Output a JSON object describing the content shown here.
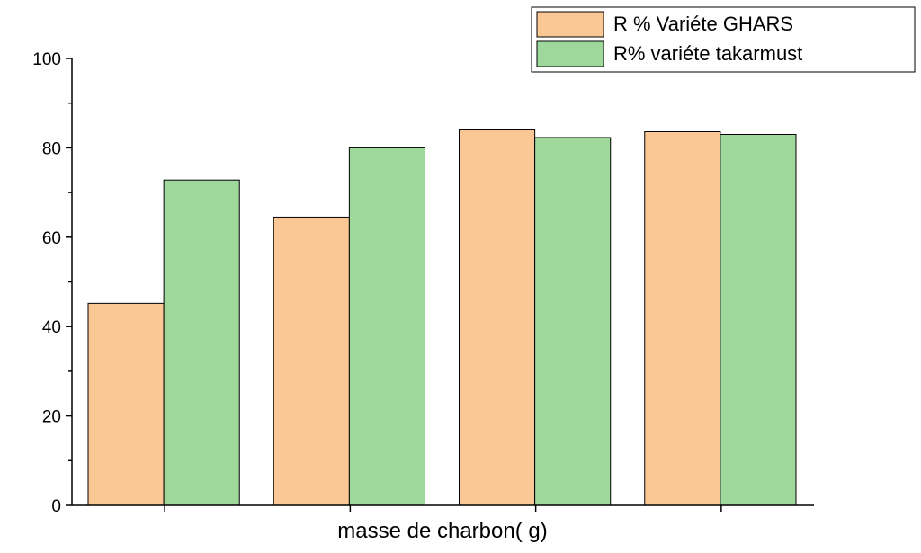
{
  "chart_data": {
    "type": "bar",
    "categories": [
      "",
      "",
      "",
      ""
    ],
    "series": [
      {
        "name": "R % Variéte GHARS",
        "color": "#FBC794",
        "values": [
          45.2,
          64.5,
          84.0,
          83.6
        ]
      },
      {
        "name": "R% variéte takarmust",
        "color": "#9ED89B",
        "values": [
          72.8,
          80.0,
          82.3,
          83.0
        ]
      }
    ],
    "xlabel": "masse de charbon( g)",
    "ylabel": "",
    "ylim": [
      0,
      100
    ],
    "yticks": [
      0,
      20,
      40,
      60,
      80,
      100
    ],
    "legend": {
      "placement": "top-right",
      "border": true
    },
    "grid": false,
    "bar_stroke_color": "#000000"
  }
}
